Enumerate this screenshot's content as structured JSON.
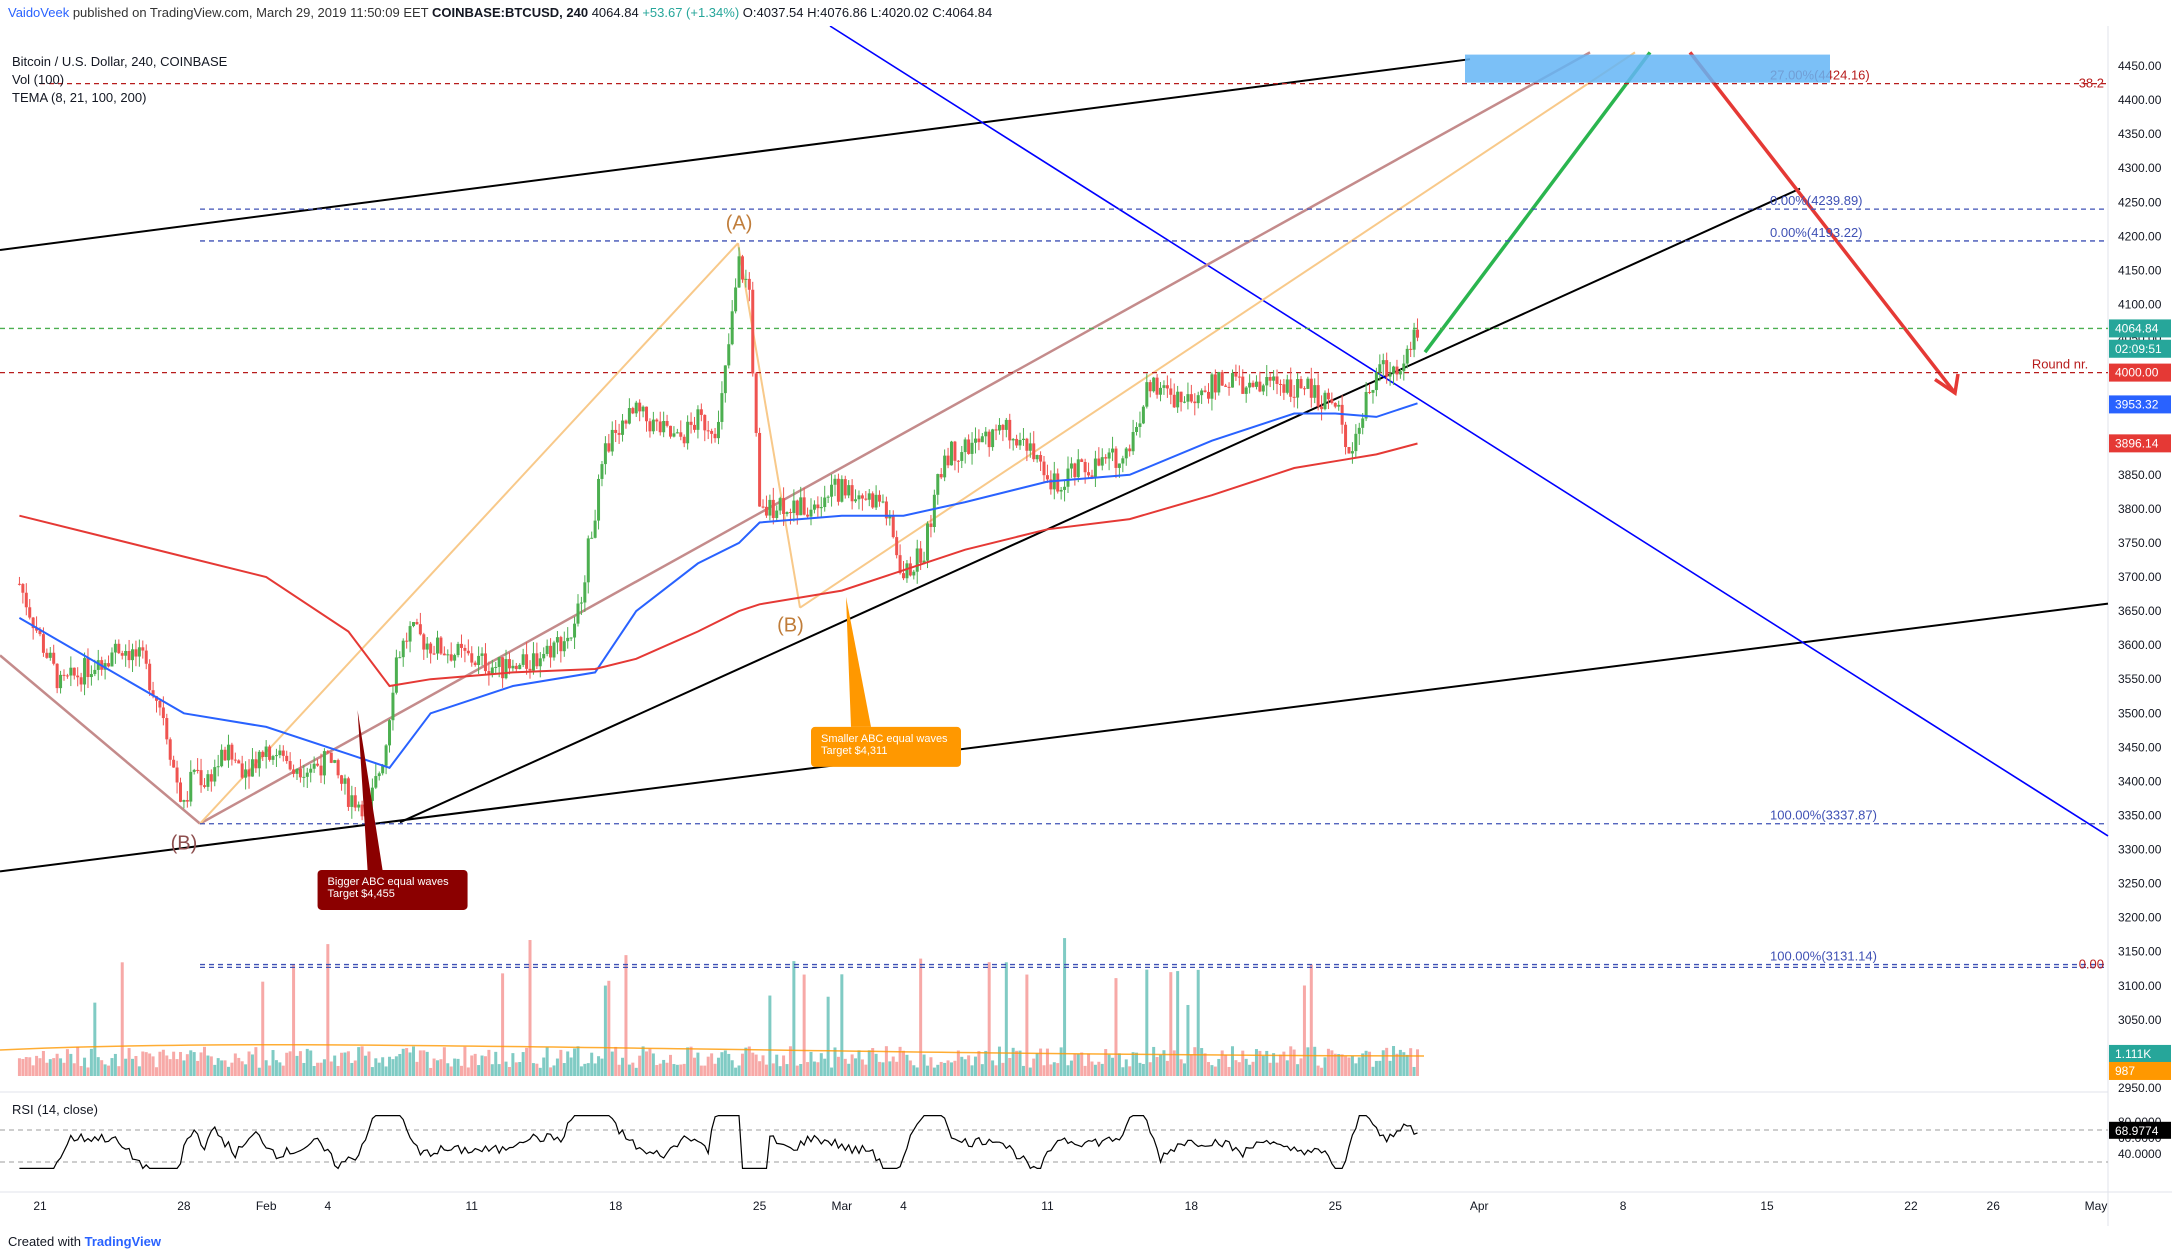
{
  "header": {
    "author": "VaidoVeek",
    "published": "published on TradingView.com, March 29, 2019 11:50:09 EET",
    "symbol": "COINBASE:BTCUSD, 240",
    "last": "4064.84",
    "change": "+53.67 (+1.34%)",
    "open": "O:4037.54",
    "high": "H:4076.86",
    "low": "L:4020.02",
    "close": "C:4064.84"
  },
  "legend": {
    "title": "Bitcoin / U.S. Dollar, 240, COINBASE",
    "vol": "Vol (100)",
    "tema": "TEMA (8, 21, 100, 200)",
    "rsi": "RSI (14, close)"
  },
  "footer": {
    "created": "Created with",
    "brand": "TradingView"
  },
  "colors": {
    "up": "#26a69a",
    "down": "#ef5350",
    "bull": "#4caf50",
    "tema100": "#2962ff",
    "tema200": "#e53935",
    "pink": "#c48b8b",
    "peach": "#f8c98a",
    "blue_line": "#0000ff",
    "green_arrow": "#2ab54f",
    "red_arrow": "#e53935"
  },
  "chart_data": {
    "type": "line",
    "subtype": "candlestick",
    "price_axis": {
      "ylim": [
        2950,
        4450
      ],
      "ticks": [
        "4450.00",
        "4400.00",
        "4350.00",
        "4300.00",
        "4250.00",
        "4200.00",
        "4150.00",
        "4100.00",
        "4050.00",
        "4000.00",
        "3950.00",
        "3900.00",
        "3850.00",
        "3800.00",
        "3750.00",
        "3700.00",
        "3650.00",
        "3600.00",
        "3550.00",
        "3500.00",
        "3450.00",
        "3400.00",
        "3350.00",
        "3300.00",
        "3250.00",
        "3200.00",
        "3150.00",
        "3100.00",
        "3050.00",
        "3000.00",
        "2950.00"
      ],
      "badges": [
        {
          "label": "4064.84",
          "value": 4064.84,
          "color": "#26a69a"
        },
        {
          "label": "02:09:51",
          "value": 4035,
          "color": "#26a69a"
        },
        {
          "label": "4000.00",
          "value": 4000,
          "color": "#e53935"
        },
        {
          "label": "3953.32",
          "value": 3953.32,
          "color": "#2962ff"
        },
        {
          "label": "3896.14",
          "value": 3896.14,
          "color": "#e53935"
        },
        {
          "label": "1.111K",
          "value": 3000,
          "color": "#26a69a"
        },
        {
          "label": "987",
          "value": 2975,
          "color": "#ff9800"
        }
      ]
    },
    "x_axis": {
      "ticks": [
        {
          "label": "21",
          "day": -11
        },
        {
          "label": "28",
          "day": -4
        },
        {
          "label": "Feb",
          "day": 0
        },
        {
          "label": "4",
          "day": 3
        },
        {
          "label": "11",
          "day": 10
        },
        {
          "label": "18",
          "day": 17
        },
        {
          "label": "25",
          "day": 24
        },
        {
          "label": "Mar",
          "day": 28
        },
        {
          "label": "4",
          "day": 31
        },
        {
          "label": "11",
          "day": 38
        },
        {
          "label": "18",
          "day": 45
        },
        {
          "label": "25",
          "day": 52
        },
        {
          "label": "Apr",
          "day": 59
        },
        {
          "label": "8",
          "day": 66
        },
        {
          "label": "15",
          "day": 73
        },
        {
          "label": "22",
          "day": 80
        },
        {
          "label": "26",
          "day": 84
        },
        {
          "label": "May",
          "day": 89
        }
      ]
    },
    "series": [
      {
        "name": "BTCUSD",
        "kind": "ohlc_path",
        "points": [
          [
            -12,
            3690
          ],
          [
            -11,
            3610
          ],
          [
            -10,
            3540
          ],
          [
            -9,
            3560
          ],
          [
            -8,
            3580
          ],
          [
            -7,
            3600
          ],
          [
            -6,
            3575
          ],
          [
            -5,
            3500
          ],
          [
            -4.5,
            3420
          ],
          [
            -4,
            3360
          ],
          [
            -3.5,
            3420
          ],
          [
            -3,
            3400
          ],
          [
            -2,
            3440
          ],
          [
            -1,
            3420
          ],
          [
            0,
            3450
          ],
          [
            1,
            3430
          ],
          [
            2,
            3420
          ],
          [
            3,
            3430
          ],
          [
            4,
            3380
          ],
          [
            5,
            3360
          ],
          [
            5.8,
            3450
          ],
          [
            6.3,
            3580
          ],
          [
            7,
            3620
          ],
          [
            8,
            3600
          ],
          [
            9,
            3590
          ],
          [
            10,
            3580
          ],
          [
            11,
            3570
          ],
          [
            12,
            3560
          ],
          [
            13,
            3580
          ],
          [
            14,
            3600
          ],
          [
            15,
            3620
          ],
          [
            16,
            3800
          ],
          [
            16.5,
            3880
          ],
          [
            17,
            3920
          ],
          [
            18,
            3940
          ],
          [
            19,
            3920
          ],
          [
            20,
            3900
          ],
          [
            21,
            3930
          ],
          [
            22,
            3920
          ],
          [
            23,
            4160
          ],
          [
            23.5,
            4120
          ],
          [
            24,
            3790
          ],
          [
            25,
            3810
          ],
          [
            26,
            3800
          ],
          [
            27,
            3820
          ],
          [
            28,
            3830
          ],
          [
            29,
            3820
          ],
          [
            30,
            3810
          ],
          [
            31,
            3700
          ],
          [
            32,
            3740
          ],
          [
            33,
            3880
          ],
          [
            34,
            3890
          ],
          [
            35,
            3900
          ],
          [
            36,
            3920
          ],
          [
            37,
            3900
          ],
          [
            38,
            3830
          ],
          [
            39,
            3850
          ],
          [
            40,
            3860
          ],
          [
            41,
            3870
          ],
          [
            42,
            3890
          ],
          [
            43,
            3990
          ],
          [
            44,
            3960
          ],
          [
            45,
            3970
          ],
          [
            46,
            3980
          ],
          [
            47,
            3990
          ],
          [
            48,
            3970
          ],
          [
            49,
            3990
          ],
          [
            50,
            3980
          ],
          [
            51,
            3970
          ],
          [
            52,
            3950
          ],
          [
            52.7,
            3890
          ],
          [
            53,
            3910
          ],
          [
            54,
            4000
          ],
          [
            55,
            4010
          ],
          [
            56,
            4064.84
          ]
        ]
      },
      {
        "name": "TEMA 100",
        "kind": "line",
        "color": "#2962ff",
        "points": [
          [
            -12,
            3640
          ],
          [
            -8,
            3570
          ],
          [
            -4,
            3500
          ],
          [
            0,
            3480
          ],
          [
            4,
            3440
          ],
          [
            6,
            3420
          ],
          [
            8,
            3500
          ],
          [
            12,
            3540
          ],
          [
            16,
            3560
          ],
          [
            18,
            3650
          ],
          [
            21,
            3720
          ],
          [
            23,
            3750
          ],
          [
            24,
            3780
          ],
          [
            28,
            3790
          ],
          [
            31,
            3790
          ],
          [
            34,
            3810
          ],
          [
            38,
            3840
          ],
          [
            42,
            3850
          ],
          [
            46,
            3900
          ],
          [
            50,
            3940
          ],
          [
            52,
            3940
          ],
          [
            54,
            3935
          ],
          [
            56,
            3955
          ]
        ]
      },
      {
        "name": "TEMA 200",
        "kind": "line",
        "color": "#e53935",
        "points": [
          [
            -12,
            3790
          ],
          [
            -8,
            3760
          ],
          [
            -4,
            3730
          ],
          [
            0,
            3700
          ],
          [
            4,
            3620
          ],
          [
            6,
            3540
          ],
          [
            8,
            3550
          ],
          [
            12,
            3560
          ],
          [
            16,
            3565
          ],
          [
            18,
            3580
          ],
          [
            21,
            3620
          ],
          [
            23,
            3650
          ],
          [
            24,
            3660
          ],
          [
            28,
            3680
          ],
          [
            31,
            3710
          ],
          [
            34,
            3740
          ],
          [
            38,
            3770
          ],
          [
            42,
            3785
          ],
          [
            46,
            3820
          ],
          [
            50,
            3860
          ],
          [
            52,
            3870
          ],
          [
            54,
            3880
          ],
          [
            56,
            3896
          ]
        ]
      }
    ],
    "horizontal_levels": [
      {
        "value": 4424.16,
        "label": "27.00%(4424.16)",
        "color": "#b71c1c",
        "dash": true
      },
      {
        "value": 4239.89,
        "label": "0.00%(4239.89)",
        "color": "#3f51b5",
        "dash": true
      },
      {
        "value": 4193.22,
        "label": "0.00%(4193.22)",
        "color": "#3f51b5",
        "dash": true
      },
      {
        "value": 4064.84,
        "label": "",
        "color": "#4caf50",
        "dash": true
      },
      {
        "value": 4000,
        "label": "Round nr.",
        "color": "#b71c1c",
        "dash": true
      },
      {
        "value": 3337.87,
        "label": "100.00%(3337.87)",
        "color": "#3f51b5",
        "dash": true
      },
      {
        "value": 3131.14,
        "label": "100.00%(3131.14)",
        "color": "#3f51b5",
        "dash": true
      },
      {
        "value": 3127,
        "label": "",
        "color": "#3f51b5",
        "dash": true
      }
    ],
    "right_edge_labels": [
      {
        "label": "38.2",
        "value": 4424.16
      },
      {
        "label": "0.00",
        "value": 3131.14
      }
    ],
    "wave_labels": [
      {
        "label": "(A)",
        "day": 23,
        "value": 4210,
        "color": "#c07d3a"
      },
      {
        "label": "(B)",
        "day": 25.5,
        "value": 3620,
        "color": "#c07d3a"
      },
      {
        "label": "(B)",
        "day": -4,
        "value": 3300,
        "color": "#8d4e4e"
      }
    ],
    "callouts": [
      {
        "lines": [
          "Bigger ABC equal waves",
          "Target $4,455"
        ],
        "bg": "#8b0000",
        "fg": "#ffffff",
        "day": 2.5,
        "value": 3270
      },
      {
        "lines": [
          "Smaller ABC equal waves",
          "Target $4,311"
        ],
        "bg": "#ff9800",
        "fg": "#ffffff",
        "day": 26.5,
        "value": 3480
      }
    ],
    "rsi": {
      "ticks": [
        "80.0000",
        "60.0000",
        "40.0000"
      ],
      "last": "68.9774",
      "levels": [
        70,
        30
      ]
    }
  }
}
